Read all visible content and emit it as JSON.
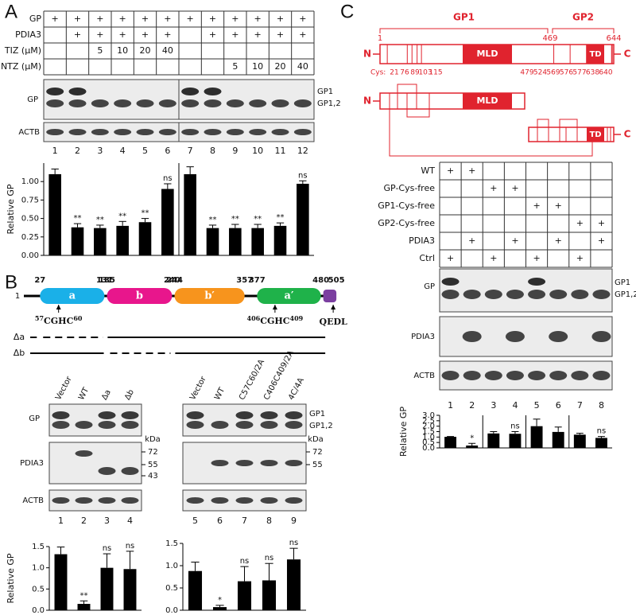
{
  "panel_a": {
    "label": "A",
    "conditions": [
      {
        "name": "GP",
        "cells": [
          "+",
          "+",
          "+",
          "+",
          "+",
          "+",
          "+",
          "+",
          "+",
          "+",
          "+",
          "+"
        ]
      },
      {
        "name": "PDIA3",
        "cells": [
          null,
          "+",
          "+",
          "+",
          "+",
          "+",
          null,
          "+",
          "+",
          "+",
          "+",
          "+"
        ]
      },
      {
        "name": "TIZ (μM)",
        "cells": [
          null,
          null,
          5,
          10,
          20,
          40,
          null,
          null,
          null,
          null,
          null,
          null
        ]
      },
      {
        "name": "NTZ (μM)",
        "cells": [
          null,
          null,
          null,
          null,
          null,
          null,
          null,
          null,
          5,
          10,
          20,
          40
        ]
      }
    ],
    "blots": [
      "GP",
      "ACTB"
    ],
    "band_labels": [
      "GP1",
      "GP1,2"
    ]
  },
  "panel_b": {
    "label": "B",
    "domain_map": {
      "start": 1,
      "end": 505,
      "domains": [
        {
          "name": "a",
          "start": 27,
          "end": 131,
          "color": "#1ab0e8"
        },
        {
          "name": "b",
          "start": 135,
          "end": 240,
          "color": "#e8168c"
        },
        {
          "name": "b′",
          "start": 244,
          "end": 357,
          "color": "#f7941d"
        },
        {
          "name": "a′",
          "start": 377,
          "end": 480,
          "color": "#1fb24a"
        }
      ],
      "motifs": [
        {
          "pre": 57,
          "core": "CGHC",
          "post": 60
        },
        {
          "pre": 406,
          "core": "CGHC",
          "post": 409
        }
      ],
      "c_terminal": "QEDL",
      "c_terminal_color": "#7b3fa0"
    },
    "deletions": [
      "Δa",
      "Δb"
    ],
    "blot_sets": [
      {
        "lanes": [
          "Vector",
          "WT",
          "Δa",
          "Δb"
        ],
        "blots": [
          "GP",
          "PDIA3",
          "ACTB"
        ],
        "unit": "kDa",
        "markers": [
          72,
          55,
          43
        ]
      },
      {
        "lanes": [
          "Vector",
          "WT",
          "C57C60/2A",
          "C406C409/2A",
          "4C/4A"
        ],
        "band_labels": [
          "GP1",
          "GP1,2"
        ],
        "unit": "kDa",
        "markers": [
          72,
          55
        ]
      }
    ]
  },
  "panel_c": {
    "label": "C",
    "regions": [
      "GP1",
      "GP2"
    ],
    "positions": [
      1,
      469,
      644
    ],
    "termini": [
      "N",
      "C"
    ],
    "domains": [
      "MLD",
      "TD"
    ],
    "cys_label": "Cys:",
    "cys": [
      21,
      76,
      89,
      103,
      115,
      479,
      524,
      569,
      576,
      577,
      638,
      640
    ],
    "color": "#e0232e",
    "conditions": [
      {
        "name": "WT",
        "cells": [
          "+",
          "+",
          null,
          null,
          null,
          null,
          null,
          null
        ]
      },
      {
        "name": "GP-Cys-free",
        "cells": [
          null,
          null,
          "+",
          "+",
          null,
          null,
          null,
          null
        ]
      },
      {
        "name": "GP1-Cys-free",
        "cells": [
          null,
          null,
          null,
          null,
          "+",
          "+",
          null,
          null
        ]
      },
      {
        "name": "GP2-Cys-free",
        "cells": [
          null,
          null,
          null,
          null,
          null,
          null,
          "+",
          "+"
        ]
      },
      {
        "name": "PDIA3",
        "cells": [
          null,
          "+",
          null,
          "+",
          null,
          "+",
          null,
          "+"
        ]
      },
      {
        "name": "Ctrl",
        "cells": [
          "+",
          null,
          "+",
          null,
          "+",
          null,
          "+",
          null
        ]
      }
    ],
    "blots": [
      "GP",
      "PDIA3",
      "ACTB"
    ],
    "band_labels": [
      "GP1",
      "GP1,2"
    ]
  },
  "chart_data": [
    {
      "type": "bar",
      "ylabel": "Relative GP",
      "color": "#000000",
      "categories": [
        "1",
        "2",
        "3",
        "4",
        "5",
        "6",
        "7",
        "8",
        "9",
        "10",
        "11",
        "12"
      ],
      "values": [
        1.1,
        0.38,
        0.37,
        0.4,
        0.45,
        0.9,
        1.1,
        0.37,
        0.37,
        0.37,
        0.4,
        0.97
      ],
      "errors": [
        0.07,
        0.05,
        0.04,
        0.06,
        0.05,
        0.07,
        0.1,
        0.04,
        0.05,
        0.05,
        0.04,
        0.04
      ],
      "annotations": [
        null,
        "**",
        "**",
        "**",
        "**",
        "ns",
        null,
        "**",
        "**",
        "**",
        "**",
        "ns"
      ],
      "ylim": [
        0,
        1.25
      ],
      "yticks": [
        {
          "value": 0,
          "label": "0.00"
        },
        0.25,
        {
          "value": 0.5,
          "label": "0.50"
        },
        0.75,
        {
          "value": 1,
          "label": "1.00"
        }
      ]
    },
    {
      "type": "bar",
      "ylabel": "Relative GP",
      "color": "#000000",
      "categories": [
        "1",
        "2",
        "3",
        "4"
      ],
      "values": [
        1.32,
        0.15,
        1.0,
        0.97
      ],
      "errors": [
        0.17,
        0.07,
        0.33,
        0.42
      ],
      "annotations": [
        null,
        "**",
        "ns",
        "ns"
      ],
      "ylim": [
        0,
        1.5
      ],
      "yticks": [
        {
          "value": 0,
          "label": "0.0"
        },
        0.5,
        {
          "value": 1,
          "label": "1.0"
        },
        1.5
      ]
    },
    {
      "type": "bar",
      "color": "#000000",
      "categories": [
        "5",
        "6",
        "7",
        "8",
        "9"
      ],
      "values": [
        0.88,
        0.07,
        0.65,
        0.67,
        1.14
      ],
      "errors": [
        0.2,
        0.04,
        0.33,
        0.38,
        0.25
      ],
      "annotations": [
        null,
        "*",
        "ns",
        "ns",
        "ns"
      ],
      "ylim": [
        0,
        1.5
      ],
      "yticks": [
        {
          "value": 0,
          "label": "0.0"
        },
        0.5,
        {
          "value": 1,
          "label": "1.0"
        },
        1.5
      ]
    },
    {
      "type": "bar",
      "ylabel": "Relative GP",
      "color": "#000000",
      "categories": [
        "1",
        "2",
        "3",
        "4",
        "5",
        "6",
        "7",
        "8"
      ],
      "values": [
        1.02,
        0.22,
        1.33,
        1.3,
        2.0,
        1.47,
        1.22,
        0.92
      ],
      "errors": [
        0.03,
        0.2,
        0.17,
        0.2,
        0.65,
        0.45,
        0.13,
        0.13
      ],
      "annotations": [
        null,
        "*",
        null,
        "ns",
        null,
        null,
        null,
        "ns"
      ],
      "ylim": [
        0,
        3
      ],
      "yticks": [
        {
          "value": 0,
          "label": "0.0"
        },
        0.5,
        {
          "value": 1,
          "label": "1.0"
        },
        1.5,
        {
          "value": 2,
          "label": "2.0"
        },
        2.5,
        {
          "value": 3,
          "label": "3.0"
        }
      ]
    }
  ]
}
